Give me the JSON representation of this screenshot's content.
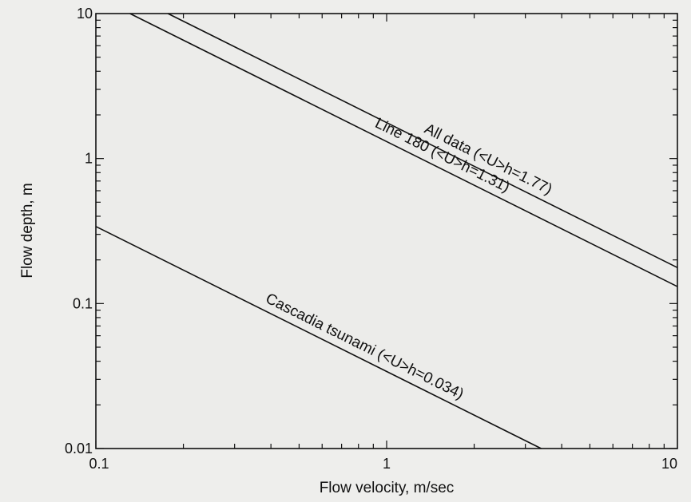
{
  "chart_data": {
    "type": "line",
    "title": "",
    "xlabel": "Flow velocity, m/sec",
    "ylabel": "Flow depth, m",
    "xscale": "log",
    "yscale": "log",
    "xlim": [
      0.1,
      10
    ],
    "ylim": [
      0.01,
      10
    ],
    "x_ticks": [
      "0.1",
      "1",
      "10"
    ],
    "y_ticks": [
      "0.01",
      "0.1",
      "1",
      "10"
    ],
    "grid": false,
    "legend": "none",
    "series": [
      {
        "name": "All data (<U>h=1.77)",
        "product_Uh": 1.77,
        "x": [
          0.177,
          10
        ],
        "y": [
          10,
          0.177
        ],
        "label_x": 1.3
      },
      {
        "name": "Line 180 (<U>h=1.31)",
        "product_Uh": 1.31,
        "x": [
          0.131,
          10
        ],
        "y": [
          10,
          0.131
        ],
        "label_x": 0.88
      },
      {
        "name": "Cascadia tsunami (<U>h=0.034)",
        "product_Uh": 0.034,
        "x": [
          0.1,
          3.4
        ],
        "y": [
          0.34,
          0.01
        ],
        "label_x": 0.37
      }
    ]
  }
}
